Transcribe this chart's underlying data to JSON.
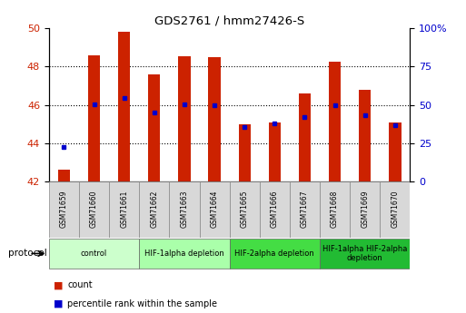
{
  "title": "GDS2761 / hmm27426-S",
  "samples": [
    "GSM71659",
    "GSM71660",
    "GSM71661",
    "GSM71662",
    "GSM71663",
    "GSM71664",
    "GSM71665",
    "GSM71666",
    "GSM71667",
    "GSM71668",
    "GSM71669",
    "GSM71670"
  ],
  "bar_base": 42.0,
  "bar_tops": [
    42.6,
    48.6,
    49.8,
    47.6,
    48.55,
    48.5,
    45.0,
    45.1,
    46.6,
    48.25,
    46.8,
    45.1
  ],
  "percentile_values": [
    43.8,
    46.05,
    46.35,
    45.6,
    46.05,
    46.0,
    44.85,
    45.05,
    45.35,
    46.0,
    45.45,
    44.95
  ],
  "ylim_left": [
    42,
    50
  ],
  "ylim_right": [
    0,
    100
  ],
  "yticks_left": [
    42,
    44,
    46,
    48,
    50
  ],
  "yticks_right": [
    0,
    25,
    50,
    75,
    100
  ],
  "bar_color": "#cc2200",
  "percentile_color": "#0000cc",
  "bg_color": "#ffffff",
  "protocol_groups": [
    {
      "label": "control",
      "start": 0,
      "end": 2,
      "color": "#ccffcc"
    },
    {
      "label": "HIF-1alpha depletion",
      "start": 3,
      "end": 5,
      "color": "#aaffaa"
    },
    {
      "label": "HIF-2alpha depletion",
      "start": 6,
      "end": 8,
      "color": "#44dd44"
    },
    {
      "label": "HIF-1alpha HIF-2alpha\ndepletion",
      "start": 9,
      "end": 11,
      "color": "#22bb33"
    }
  ],
  "ticklabel_bg": "#cccccc",
  "ylabel_right_color": "#0000cc",
  "ylabel_left_color": "#cc2200"
}
